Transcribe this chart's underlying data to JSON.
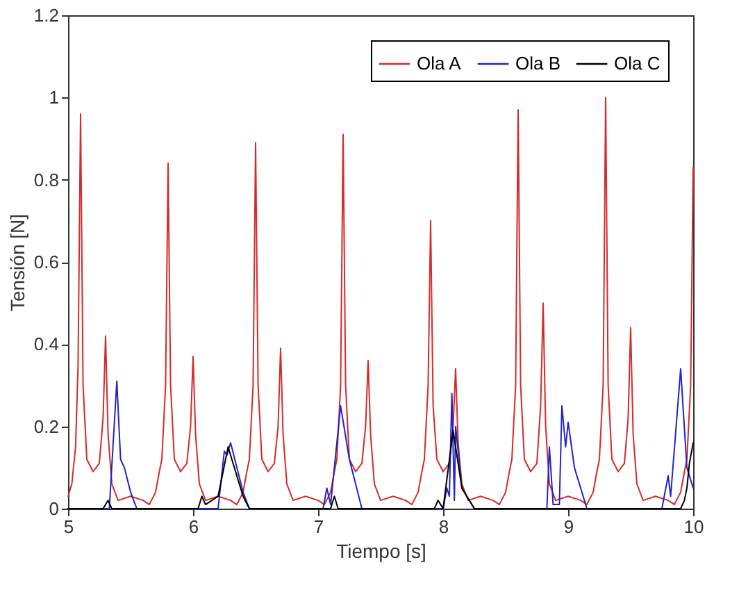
{
  "chart_data": {
    "type": "line",
    "xlabel": "Tiempo [s]",
    "ylabel": "Tensión [N]",
    "xlim": [
      5,
      10
    ],
    "xticks": [
      5,
      6,
      7,
      8,
      9,
      10
    ],
    "ylim": [
      0,
      1.2
    ],
    "yticks": [
      0,
      0.2,
      0.4,
      0.6,
      0.8,
      1,
      1.2
    ],
    "grid": false,
    "legend": "top right",
    "line_style": "solid",
    "marker": "none",
    "series": [
      {
        "name": "Ola A",
        "color": "#d62a2a",
        "x": [
          5.0,
          5.03,
          5.06,
          5.08,
          5.1,
          5.12,
          5.15,
          5.2,
          5.25,
          5.28,
          5.3,
          5.32,
          5.35,
          5.4,
          5.5,
          5.6,
          5.65,
          5.7,
          5.73,
          5.75,
          5.78,
          5.8,
          5.82,
          5.85,
          5.9,
          5.95,
          5.98,
          6.0,
          6.02,
          6.05,
          6.1,
          6.2,
          6.3,
          6.35,
          6.4,
          6.43,
          6.45,
          6.48,
          6.5,
          6.52,
          6.55,
          6.6,
          6.65,
          6.68,
          6.7,
          6.72,
          6.75,
          6.8,
          6.9,
          7.0,
          7.05,
          7.1,
          7.13,
          7.15,
          7.18,
          7.2,
          7.22,
          7.25,
          7.3,
          7.35,
          7.38,
          7.4,
          7.42,
          7.45,
          7.5,
          7.6,
          7.7,
          7.75,
          7.8,
          7.83,
          7.85,
          7.88,
          7.9,
          7.92,
          7.95,
          8.0,
          8.05,
          8.08,
          8.1,
          8.12,
          8.15,
          8.2,
          8.3,
          8.4,
          8.45,
          8.5,
          8.53,
          8.55,
          8.58,
          8.6,
          8.62,
          8.65,
          8.7,
          8.75,
          8.78,
          8.8,
          8.82,
          8.85,
          8.9,
          9.0,
          9.1,
          9.15,
          9.2,
          9.23,
          9.25,
          9.28,
          9.3,
          9.32,
          9.35,
          9.4,
          9.45,
          9.48,
          9.5,
          9.52,
          9.55,
          9.6,
          9.7,
          9.8,
          9.85,
          9.9,
          9.93,
          9.95,
          9.98,
          10.0
        ],
        "values": [
          0.03,
          0.06,
          0.15,
          0.35,
          0.96,
          0.3,
          0.12,
          0.09,
          0.11,
          0.22,
          0.42,
          0.18,
          0.06,
          0.02,
          0.03,
          0.02,
          0.01,
          0.04,
          0.09,
          0.12,
          0.3,
          0.84,
          0.3,
          0.12,
          0.09,
          0.11,
          0.2,
          0.37,
          0.18,
          0.06,
          0.02,
          0.03,
          0.02,
          0.01,
          0.04,
          0.09,
          0.12,
          0.3,
          0.89,
          0.3,
          0.12,
          0.09,
          0.11,
          0.2,
          0.39,
          0.18,
          0.06,
          0.02,
          0.03,
          0.02,
          0.01,
          0.04,
          0.09,
          0.12,
          0.3,
          0.91,
          0.3,
          0.12,
          0.09,
          0.11,
          0.2,
          0.36,
          0.18,
          0.06,
          0.02,
          0.03,
          0.02,
          0.01,
          0.04,
          0.09,
          0.12,
          0.3,
          0.7,
          0.25,
          0.12,
          0.09,
          0.11,
          0.2,
          0.34,
          0.16,
          0.06,
          0.02,
          0.03,
          0.02,
          0.01,
          0.04,
          0.09,
          0.12,
          0.3,
          0.97,
          0.3,
          0.12,
          0.09,
          0.11,
          0.25,
          0.5,
          0.2,
          0.06,
          0.02,
          0.03,
          0.02,
          0.01,
          0.04,
          0.09,
          0.12,
          0.3,
          1.0,
          0.3,
          0.12,
          0.09,
          0.11,
          0.22,
          0.44,
          0.18,
          0.06,
          0.02,
          0.03,
          0.02,
          0.01,
          0.04,
          0.09,
          0.12,
          0.3,
          0.83
        ]
      },
      {
        "name": "Ola B",
        "color": "#2323c8",
        "x": [
          5.0,
          5.33,
          5.39,
          5.42,
          5.45,
          5.5,
          5.55,
          6.2,
          6.25,
          6.27,
          6.3,
          6.4,
          6.45,
          7.04,
          7.07,
          7.1,
          7.18,
          7.25,
          7.35,
          8.0,
          8.03,
          8.05,
          8.07,
          8.09,
          8.1,
          8.15,
          8.25,
          8.83,
          8.85,
          8.88,
          8.93,
          8.95,
          8.98,
          9.0,
          9.05,
          9.15,
          9.75,
          9.8,
          9.82,
          9.9,
          9.95,
          10.0
        ],
        "values": [
          0,
          0,
          0.31,
          0.12,
          0.1,
          0.04,
          0,
          0,
          0.14,
          0.13,
          0.16,
          0.04,
          0,
          0,
          0.05,
          0.01,
          0.25,
          0.12,
          0,
          0,
          0.05,
          0.03,
          0.28,
          0.02,
          0.2,
          0.05,
          0,
          0,
          0.15,
          0.01,
          0.01,
          0.25,
          0.15,
          0.21,
          0.1,
          0,
          0,
          0.08,
          0.03,
          0.34,
          0.1,
          0.05
        ]
      },
      {
        "name": "Ola C",
        "color": "#000000",
        "x": [
          5.0,
          5.28,
          5.32,
          5.35,
          6.04,
          6.07,
          6.1,
          6.2,
          6.28,
          6.4,
          6.45,
          7.1,
          7.13,
          7.16,
          7.93,
          7.96,
          8.0,
          8.08,
          8.15,
          8.25,
          9.9,
          9.93,
          9.95,
          9.97,
          10.0
        ],
        "values": [
          0,
          0,
          0.02,
          0,
          0,
          0.03,
          0.01,
          0.03,
          0.15,
          0.03,
          0,
          0,
          0.03,
          0,
          0,
          0.02,
          0,
          0.19,
          0.05,
          0,
          0,
          0.02,
          0.05,
          0.11,
          0.16
        ]
      }
    ]
  }
}
